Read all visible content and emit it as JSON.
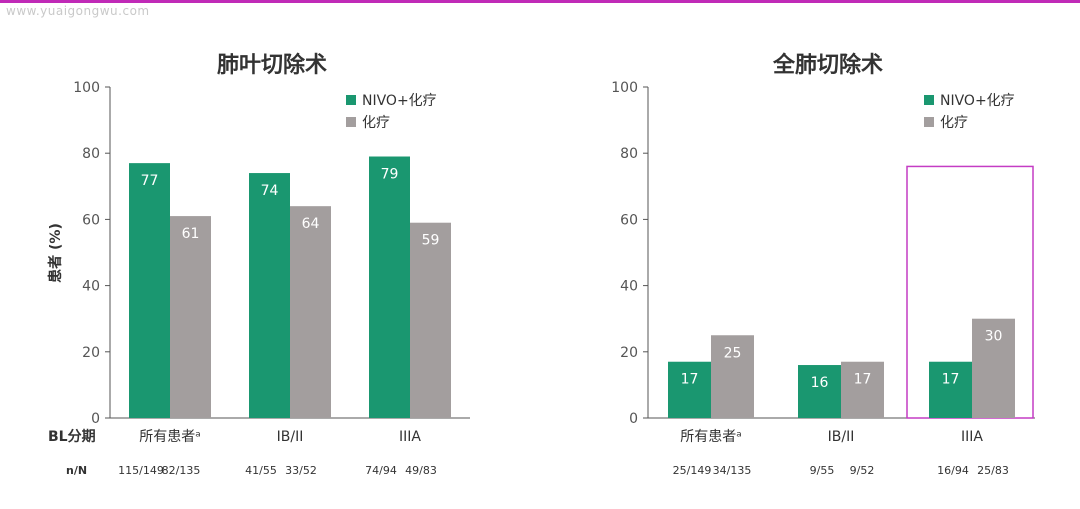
{
  "watermark": "www.yuaigongwu.com",
  "colors": {
    "nivo": "#1a9770",
    "chemo": "#a39e9e",
    "highlight": "#c43cc4",
    "topline": "#c02ab7"
  },
  "ylabel": "患者 (%)",
  "bl_label": "BL分期",
  "nn_label": "n/N",
  "chart_data": [
    {
      "type": "bar",
      "title": "肺叶切除术",
      "ylabel": "患者 (%)",
      "ylim": [
        0,
        100
      ],
      "yticks": [
        0,
        20,
        40,
        60,
        80,
        100
      ],
      "grid": false,
      "legend_position": "top-right",
      "categories": [
        "所有患者ᵃ",
        "IB/II",
        "IIIA"
      ],
      "series": [
        {
          "name": "NIVO+化疗",
          "values": [
            77,
            74,
            79
          ],
          "nn": [
            "115/149",
            "41/55",
            "74/94"
          ]
        },
        {
          "name": "化疗",
          "values": [
            61,
            64,
            59
          ],
          "nn": [
            "82/135",
            "33/52",
            "49/83"
          ]
        }
      ],
      "highlight_category": null
    },
    {
      "type": "bar",
      "title": "全肺切除术",
      "ylabel": "",
      "ylim": [
        0,
        100
      ],
      "yticks": [
        0,
        20,
        40,
        60,
        80,
        100
      ],
      "grid": false,
      "legend_position": "top-right",
      "categories": [
        "所有患者ᵃ",
        "IB/II",
        "IIIA"
      ],
      "series": [
        {
          "name": "NIVO+化疗",
          "values": [
            17,
            16,
            17
          ],
          "nn": [
            "25/149",
            "9/55",
            "16/94"
          ]
        },
        {
          "name": "化疗",
          "values": [
            25,
            17,
            30
          ],
          "nn": [
            "34/135",
            "9/52",
            "25/83"
          ]
        }
      ],
      "highlight_category": "IIIA"
    }
  ]
}
